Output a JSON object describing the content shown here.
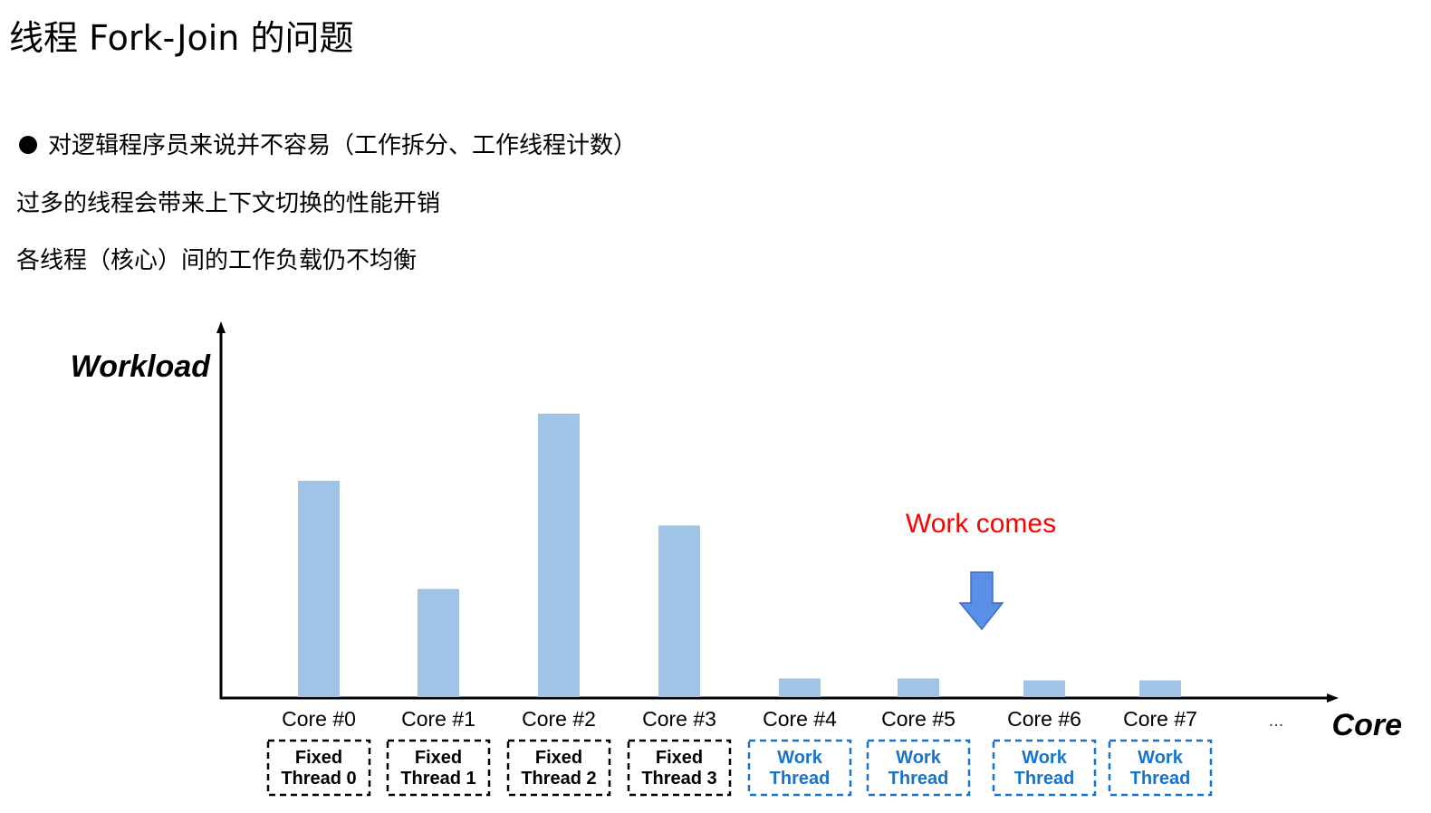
{
  "title": "线程 Fork-Join 的问题",
  "bullets": [
    "对逻辑程序员来说并不容易（工作拆分、工作线程计数）",
    "过多的线程会带来上下文切换的性能开销",
    "各线程（核心）间的工作负载仍不均衡"
  ],
  "diagram": {
    "y_axis_label": "Workload",
    "x_axis_label": "Core",
    "ellipsis": "...",
    "annotation": "Work comes",
    "annotation_color": "#ff0000",
    "arrow_color": "#5b8ee6",
    "bar_color": "#9fc4e6",
    "fixed_color": "#000000",
    "work_color": "#1a73c8",
    "cores": [
      {
        "label": "Core #0",
        "workload_fraction": 0.58,
        "thread_line1": "Fixed",
        "thread_line2": "Thread 0",
        "thread_type": "fixed"
      },
      {
        "label": "Core #1",
        "workload_fraction": 0.29,
        "thread_line1": "Fixed",
        "thread_line2": "Thread 1",
        "thread_type": "fixed"
      },
      {
        "label": "Core #2",
        "workload_fraction": 0.76,
        "thread_line1": "Fixed",
        "thread_line2": "Thread 2",
        "thread_type": "fixed"
      },
      {
        "label": "Core #3",
        "workload_fraction": 0.46,
        "thread_line1": "Fixed",
        "thread_line2": "Thread 3",
        "thread_type": "fixed"
      },
      {
        "label": "Core #4",
        "workload_fraction": 0.05,
        "thread_line1": "Work",
        "thread_line2": "Thread",
        "thread_type": "work"
      },
      {
        "label": "Core #5",
        "workload_fraction": 0.05,
        "thread_line1": "Work",
        "thread_line2": "Thread",
        "thread_type": "work"
      },
      {
        "label": "Core #6",
        "workload_fraction": 0.045,
        "thread_line1": "Work",
        "thread_line2": "Thread",
        "thread_type": "work"
      },
      {
        "label": "Core #7",
        "workload_fraction": 0.045,
        "thread_line1": "Work",
        "thread_line2": "Thread",
        "thread_type": "work"
      }
    ]
  }
}
